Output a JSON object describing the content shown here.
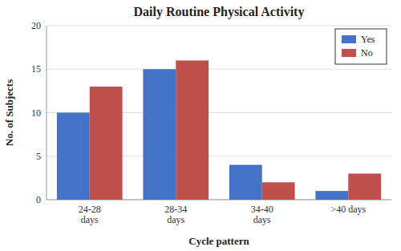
{
  "chart_data": {
    "type": "bar",
    "title": "Daily Routine Physical Activity",
    "xlabel": "Cycle pattern",
    "ylabel": "No. of Subjects",
    "categories": [
      "24-28\ndays",
      "28-34\ndays",
      "34-40\ndays",
      ">40 days"
    ],
    "series": [
      {
        "name": "Yes",
        "color": "#4472C4",
        "values": [
          10,
          15,
          4,
          1
        ]
      },
      {
        "name": "No",
        "color": "#C0504D",
        "values": [
          13,
          16,
          2,
          3
        ]
      }
    ],
    "ylim": [
      0,
      20
    ],
    "yticks": [
      0,
      5,
      10,
      15,
      20
    ],
    "grid": true,
    "legend": "upper right"
  }
}
